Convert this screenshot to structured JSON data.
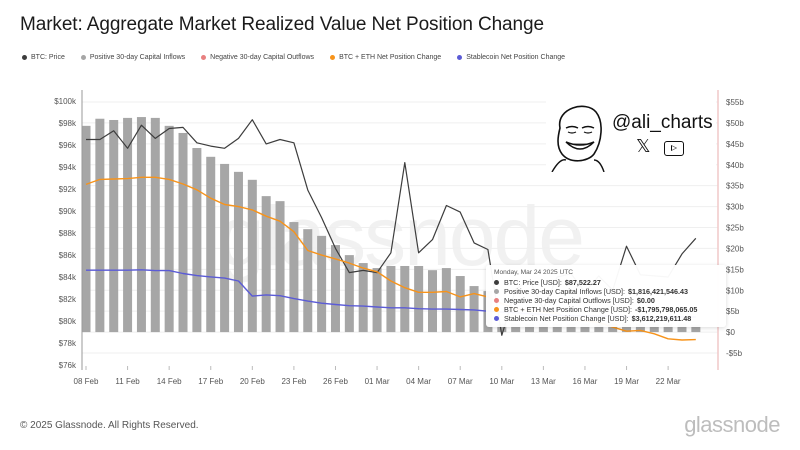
{
  "title": "Market: Aggregate Market Realized Value Net Position Change",
  "legend": [
    {
      "label": "BTC: Price",
      "color": "#3d3d3d"
    },
    {
      "label": "Positive 30-day Capital Inflows",
      "color": "#a6a6a6"
    },
    {
      "label": "Negative 30-day Capital Outflows",
      "color": "#e88080"
    },
    {
      "label": "BTC + ETH Net Position Change",
      "color": "#f7931a"
    },
    {
      "label": "Stablecoin Net Position Change",
      "color": "#5b5bd6"
    }
  ],
  "watermark": "glassnode",
  "badge": {
    "handle": "@ali_charts",
    "x_icon": "𝕏"
  },
  "tooltip": {
    "date": "Monday, Mar 24 2025 UTC",
    "rows": [
      {
        "label": "BTC: Price [USD]:",
        "value": "$87,522.27",
        "color": "#3d3d3d"
      },
      {
        "label": "Positive 30-day Capital Inflows [USD]:",
        "value": "$1,816,421,546.43",
        "color": "#a6a6a6"
      },
      {
        "label": "Negative 30-day Capital Outflows [USD]:",
        "value": "$0.00",
        "color": "#e88080"
      },
      {
        "label": "BTC + ETH Net Position Change [USD]:",
        "value": "-$1,795,798,065.05",
        "color": "#f7931a"
      },
      {
        "label": "Stablecoin Net Position Change [USD]:",
        "value": "$3,612,219,611.48",
        "color": "#5b5bd6"
      }
    ]
  },
  "footer": {
    "copyright": "© 2025 Glassnode. All Rights Reserved.",
    "logo": "glassnode"
  },
  "chart_data": {
    "type": "bar",
    "title": "Market: Aggregate Market Realized Value Net Position Change",
    "x": [
      "08 Feb",
      "09 Feb",
      "10 Feb",
      "11 Feb",
      "12 Feb",
      "13 Feb",
      "14 Feb",
      "15 Feb",
      "16 Feb",
      "17 Feb",
      "18 Feb",
      "19 Feb",
      "20 Feb",
      "21 Feb",
      "22 Feb",
      "23 Feb",
      "24 Feb",
      "25 Feb",
      "26 Feb",
      "27 Feb",
      "28 Feb",
      "01 Mar",
      "02 Mar",
      "03 Mar",
      "04 Mar",
      "05 Mar",
      "06 Mar",
      "07 Mar",
      "08 Mar",
      "09 Mar",
      "10 Mar",
      "11 Mar",
      "12 Mar",
      "13 Mar",
      "14 Mar",
      "15 Mar",
      "16 Mar",
      "17 Mar",
      "18 Mar",
      "19 Mar",
      "20 Mar",
      "21 Mar",
      "22 Mar",
      "23 Mar",
      "24 Mar"
    ],
    "x_ticks": [
      "08 Feb",
      "11 Feb",
      "14 Feb",
      "17 Feb",
      "20 Feb",
      "23 Feb",
      "26 Feb",
      "01 Mar",
      "04 Mar",
      "07 Mar",
      "10 Mar",
      "13 Mar",
      "16 Mar",
      "19 Mar",
      "22 Mar"
    ],
    "left_axis": {
      "label": "BTC: Price",
      "ylim": [
        76000,
        100000
      ],
      "ticks": [
        "$76k",
        "$78k",
        "$80k",
        "$82k",
        "$84k",
        "$86k",
        "$88k",
        "$90k",
        "$92k",
        "$94k",
        "$96k",
        "$98k",
        "$100k"
      ]
    },
    "right_axis": {
      "label": "USD",
      "ylim": [
        -5,
        55
      ],
      "unit": "billion",
      "ticks": [
        "-$5b",
        "$0",
        "$5b",
        "$10b",
        "$15b",
        "$20b",
        "$25b",
        "$30b",
        "$35b",
        "$40b",
        "$45b",
        "$50b",
        "$55b"
      ]
    },
    "grid": true,
    "legend_position": "top-left",
    "series": [
      {
        "name": "BTC: Price",
        "type": "line",
        "axis": "left",
        "color": "#3d3d3d",
        "values": [
          96500,
          96500,
          97300,
          95700,
          97800,
          96600,
          97500,
          97600,
          96200,
          95900,
          95700,
          96600,
          98300,
          96100,
          96500,
          96200,
          91900,
          89400,
          86600,
          84400,
          84600,
          84400,
          86200,
          94400,
          86200,
          87400,
          90500,
          89900,
          87100,
          86500,
          78700,
          82900,
          83700,
          81100,
          84000,
          84300,
          82600,
          84100,
          82800,
          86800,
          84200,
          84100,
          84000,
          86100,
          87522
        ]
      },
      {
        "name": "Positive 30-day Capital Inflows",
        "type": "bar",
        "axis": "right",
        "color": "#a6a6a6",
        "values": [
          49.3,
          51.0,
          50.7,
          51.2,
          51.4,
          51.2,
          49.3,
          47.6,
          44.0,
          41.9,
          40.2,
          38.3,
          36.4,
          32.5,
          31.3,
          26.3,
          24.6,
          23.0,
          20.8,
          18.4,
          16.5,
          15.3,
          15.8,
          15.8,
          15.8,
          14.8,
          15.3,
          13.4,
          11.0,
          9.8,
          2.0,
          2.0,
          2.0,
          2.0,
          2.0,
          2.0,
          2.0,
          2.0,
          2.0,
          2.0,
          2.0,
          2.0,
          2.0,
          2.0,
          1.82
        ]
      },
      {
        "name": "Negative 30-day Capital Outflows",
        "type": "bar",
        "axis": "right",
        "color": "#e88080",
        "values": [
          0,
          0,
          0,
          0,
          0,
          0,
          0,
          0,
          0,
          0,
          0,
          0,
          0,
          0,
          0,
          0,
          0,
          0,
          0,
          0,
          0,
          0,
          0,
          0,
          0,
          0,
          0,
          0,
          0,
          0,
          0,
          0,
          0,
          0,
          0,
          0,
          0,
          0,
          0,
          0,
          0,
          0,
          0,
          0,
          0
        ]
      },
      {
        "name": "BTC + ETH Net Position Change",
        "type": "line",
        "axis": "right",
        "color": "#f7931a",
        "values": [
          35.3,
          36.5,
          36.6,
          36.7,
          37.0,
          37.0,
          36.5,
          35.4,
          34.0,
          32.0,
          30.5,
          30.0,
          29.2,
          27.7,
          26.5,
          24.0,
          19.5,
          18.4,
          17.5,
          16.5,
          15.3,
          14.4,
          12.2,
          10.6,
          9.5,
          9.5,
          9.7,
          8.4,
          9.2,
          8.4,
          6.8,
          5.6,
          5.1,
          4.9,
          4.5,
          3.0,
          2.7,
          2.3,
          1.2,
          0.2,
          0.4,
          -0.4,
          -1.6,
          -1.9,
          -1.8
        ]
      },
      {
        "name": "Stablecoin Net Position Change",
        "type": "line",
        "axis": "right",
        "color": "#5b5bd6",
        "values": [
          14.8,
          14.8,
          14.8,
          14.8,
          14.9,
          14.7,
          14.7,
          14.0,
          13.5,
          13.2,
          12.9,
          12.2,
          8.6,
          8.9,
          8.7,
          8.0,
          7.4,
          6.9,
          6.6,
          6.3,
          6.2,
          6.0,
          5.8,
          5.8,
          5.6,
          5.5,
          5.5,
          5.4,
          5.3,
          5.0,
          4.8,
          4.6,
          4.4,
          4.2,
          4.0,
          3.9,
          3.9,
          3.8,
          3.8,
          3.7,
          3.7,
          3.6,
          3.6,
          3.6,
          3.61
        ]
      }
    ]
  }
}
